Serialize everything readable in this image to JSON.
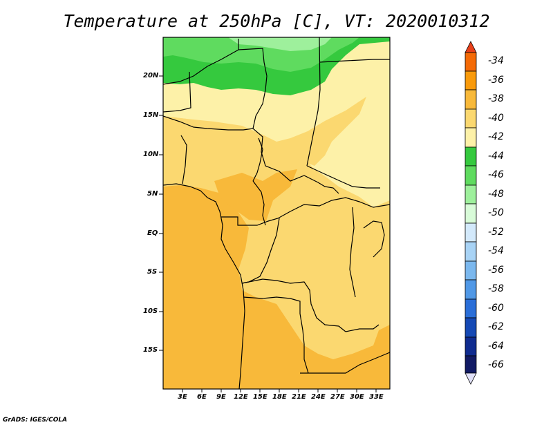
{
  "title": "Temperature at 250hPa [C], VT: 2020010312",
  "credit": "GrADS: IGES/COLA",
  "chart_data": {
    "type": "heatmap",
    "title": "Temperature at 250hPa [C], VT: 2020010312",
    "variable": "Temperature",
    "units": "C",
    "level": "250hPa",
    "valid_time": "2020010312",
    "lat_ticks": [
      "20N",
      "15N",
      "10N",
      "5N",
      "EQ",
      "5S",
      "10S",
      "15S"
    ],
    "lon_ticks": [
      "3E",
      "6E",
      "9E",
      "12E",
      "15E",
      "18E",
      "21E",
      "24E",
      "27E",
      "30E",
      "33E"
    ],
    "lon_range": [
      0,
      35
    ],
    "lat_range": [
      -20,
      25
    ],
    "colorbar": {
      "labels": [
        "-34",
        "-36",
        "-38",
        "-40",
        "-42",
        "-44",
        "-46",
        "-48",
        "-50",
        "-52",
        "-54",
        "-56",
        "-58",
        "-60",
        "-62",
        "-64",
        "-66"
      ],
      "colors": [
        "#e8401a",
        "#f46a06",
        "#f99a0b",
        "#f8b93a",
        "#fbd870",
        "#fdf1a8",
        "#35c93e",
        "#5fdb5f",
        "#9ef09c",
        "#d8fbd8",
        "#d3e9fb",
        "#a8d3f5",
        "#7bb8ee",
        "#5098e6",
        "#2a6ed8",
        "#1549b5",
        "#0f2b8f",
        "#111a64"
      ],
      "end_low_color": "#e0e0f8"
    },
    "regions": [
      {
        "name": "northern-cold-band",
        "value_range": [
          -46,
          -44
        ],
        "color": "#35c93e"
      },
      {
        "name": "northern-light-green",
        "value_range": [
          -48,
          -46
        ],
        "color": "#5fdb5f"
      },
      {
        "name": "sahel-pale-yellow",
        "value_range": [
          -44,
          -42
        ],
        "color": "#fdf1a8"
      },
      {
        "name": "central-yellow",
        "value_range": [
          -42,
          -40
        ],
        "color": "#fbd870"
      },
      {
        "name": "southern-orange",
        "value_range": [
          -40,
          -38
        ],
        "color": "#f8b93a"
      }
    ]
  }
}
